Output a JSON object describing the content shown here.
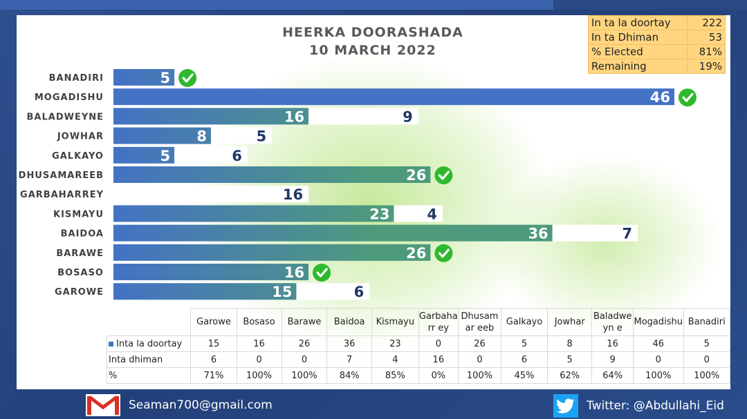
{
  "title": {
    "line1": "HEERKA DOORASHADA",
    "line2": "10 MARCH 2022"
  },
  "summary": [
    {
      "label": "In ta la doortay",
      "value": "222"
    },
    {
      "label": "In ta Dhiman",
      "value": "53"
    },
    {
      "label": "% Elected",
      "value": "81%"
    },
    {
      "label": "Remaining",
      "value": "19%"
    }
  ],
  "colors": {
    "elected_start": "#4472c4",
    "elected_end": "#4e9a7c",
    "remaining": "#ffffff",
    "label_dark": "#1f3864",
    "check": "#2eb82e"
  },
  "chart_data": {
    "type": "bar",
    "orientation": "horizontal",
    "stacked": true,
    "categories": [
      "BANADIRI",
      "MOGADISHU",
      "BALADWEYNE",
      "JOWHAR",
      "GALKAYO",
      "DHUSAMAREEB",
      "GARBAHARREY",
      "KISMAYU",
      "BAIDOA",
      "BARAWE",
      "BOSASO",
      "GAROWE"
    ],
    "series": [
      {
        "name": "Inta la doortay",
        "values": [
          5,
          46,
          16,
          8,
          5,
          26,
          0,
          23,
          36,
          26,
          16,
          15
        ]
      },
      {
        "name": "Inta dhiman",
        "values": [
          0,
          0,
          9,
          5,
          6,
          0,
          16,
          4,
          7,
          0,
          0,
          6
        ]
      }
    ],
    "completed": [
      true,
      true,
      false,
      false,
      false,
      true,
      false,
      false,
      false,
      true,
      true,
      false
    ]
  },
  "table": {
    "columns": [
      "Garowe",
      "Bosaso",
      "Barawe",
      "Baidoa",
      "Kismayu",
      "Garbaharr ey",
      "Dhusamar eeb",
      "Galkayo",
      "Jowhar",
      "Baladweyn e",
      "Mogadishu",
      "Banadiri"
    ],
    "rows": [
      {
        "label": "Inta la doortay",
        "legend": true,
        "values": [
          "15",
          "16",
          "26",
          "36",
          "23",
          "0",
          "26",
          "5",
          "8",
          "16",
          "46",
          "5"
        ]
      },
      {
        "label": "Inta dhiman",
        "legend": false,
        "values": [
          "6",
          "0",
          "0",
          "7",
          "4",
          "16",
          "0",
          "6",
          "5",
          "9",
          "0",
          "0"
        ]
      },
      {
        "label": "%",
        "legend": false,
        "values": [
          "71%",
          "100%",
          "100%",
          "84%",
          "85%",
          "0%",
          "100%",
          "45%",
          "62%",
          "64%",
          "100%",
          "100%"
        ]
      }
    ]
  },
  "footer": {
    "email": "Seaman700@gmail.com",
    "twitter": "Twitter: @Abdullahi_Eid",
    "email_icon": "gmail-icon",
    "twitter_icon": "twitter-bird-icon"
  }
}
